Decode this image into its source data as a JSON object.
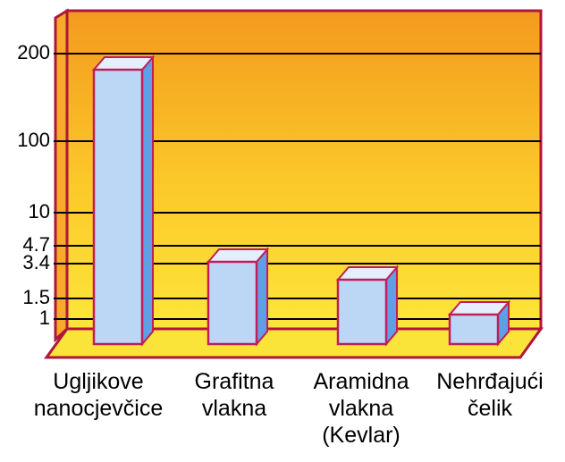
{
  "chart_data": {
    "type": "bar3d",
    "categories": [
      "Ugljikove\nnanocjevčice",
      "Grafitna\nvlakna",
      "Aramidna\nvlakna\n(Kevlar)",
      "Nehrđajući\nčelik"
    ],
    "values": [
      200,
      4.7,
      3.4,
      1.5
    ],
    "color": "#bcd6f6",
    "ylim": [
      1,
      200
    ],
    "yticks": [
      200,
      100,
      10,
      4.7,
      3.4,
      1.5,
      1
    ],
    "grid": true
  }
}
